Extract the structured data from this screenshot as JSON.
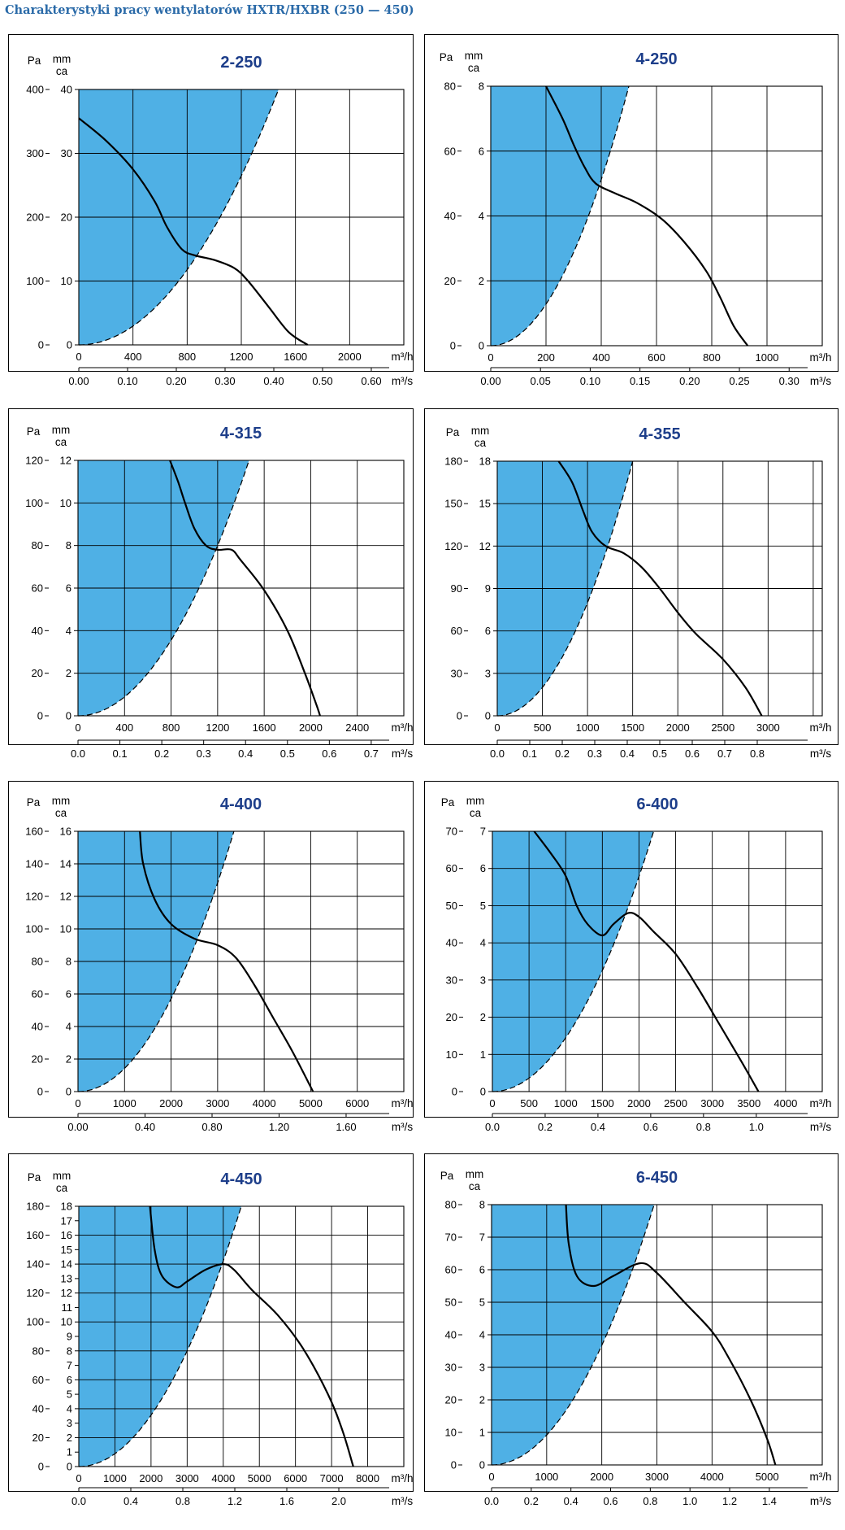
{
  "page": {
    "title": "Charakterystyki pracy wentylatorów HXTR/HXBR (250 — 450)"
  },
  "colors": {
    "fill": "#4fb0e5",
    "title": "#1d3e8a",
    "grid": "#000000",
    "curve": "#000000"
  },
  "chart_data": [
    {
      "type": "line",
      "title": "2-250",
      "ylabel_pa": "Pa",
      "ylabel_mm": "mm",
      "ylabel_mm2": "ca",
      "xlabel": "m³/h",
      "xlabel2": "m³/s",
      "xlim": [
        0,
        2400
      ],
      "ylim": [
        0,
        400
      ],
      "x_ticks": [
        "0",
        "400",
        "800",
        "1200",
        "1600",
        "2000"
      ],
      "pa_ticks": [
        "0",
        "100",
        "200",
        "300",
        "400"
      ],
      "mm_ticks": [
        "0",
        "10",
        "20",
        "30",
        "40"
      ],
      "x2_ticks": [
        "0.00",
        "0.10",
        "0.20",
        "0.30",
        "0.40",
        "0.50",
        "0.60"
      ],
      "x2_max": 0.6667,
      "x2_step": 0.1,
      "fill_boundary_x": 1475,
      "curve": [
        [
          0,
          355
        ],
        [
          200,
          320
        ],
        [
          400,
          275
        ],
        [
          560,
          225
        ],
        [
          650,
          185
        ],
        [
          760,
          150
        ],
        [
          860,
          140
        ],
        [
          1000,
          133
        ],
        [
          1150,
          120
        ],
        [
          1250,
          100
        ],
        [
          1400,
          60
        ],
        [
          1550,
          20
        ],
        [
          1690,
          0
        ]
      ]
    },
    {
      "type": "line",
      "title": "4-250",
      "ylabel_pa": "Pa",
      "ylabel_mm": "mm",
      "ylabel_mm2": "ca",
      "xlabel": "m³/h",
      "xlabel2": "m³/s",
      "xlim": [
        0,
        1200
      ],
      "ylim": [
        0,
        80
      ],
      "x_ticks": [
        "0",
        "200",
        "400",
        "600",
        "800",
        "1000"
      ],
      "pa_ticks": [
        "0",
        "20",
        "40",
        "60",
        "80"
      ],
      "mm_ticks": [
        "0",
        "2",
        "4",
        "6",
        "8"
      ],
      "x2_ticks": [
        "0.00",
        "0.05",
        "0.10",
        "0.15",
        "0.20",
        "0.25",
        "0.30"
      ],
      "x2_max": 0.3333,
      "x2_step": 0.05,
      "fill_boundary_x": 500,
      "curve": [
        [
          200,
          80
        ],
        [
          260,
          70
        ],
        [
          300,
          62
        ],
        [
          340,
          55
        ],
        [
          380,
          50
        ],
        [
          450,
          47
        ],
        [
          530,
          44
        ],
        [
          620,
          39
        ],
        [
          700,
          32
        ],
        [
          780,
          23
        ],
        [
          830,
          15
        ],
        [
          880,
          6
        ],
        [
          930,
          0
        ]
      ]
    },
    {
      "type": "line",
      "title": "4-315",
      "ylabel_pa": "Pa",
      "ylabel_mm": "mm",
      "ylabel_mm2": "ca",
      "xlabel": "m³/h",
      "xlabel2": "m³/s",
      "xlim": [
        0,
        2800
      ],
      "ylim": [
        0,
        120
      ],
      "x_ticks": [
        "0",
        "400",
        "800",
        "1200",
        "1600",
        "2000",
        "2400"
      ],
      "pa_ticks": [
        "0",
        "20",
        "40",
        "60",
        "80",
        "100",
        "120"
      ],
      "mm_ticks": [
        "0",
        "2",
        "4",
        "6",
        "8",
        "10",
        "12"
      ],
      "x2_ticks": [
        "0.0",
        "0.1",
        "0.2",
        "0.3",
        "0.4",
        "0.5",
        "0.6",
        "0.7"
      ],
      "x2_max": 0.7778,
      "x2_step": 0.1,
      "fill_boundary_x": 1470,
      "curve": [
        [
          790,
          120
        ],
        [
          860,
          110
        ],
        [
          920,
          100
        ],
        [
          1000,
          88
        ],
        [
          1100,
          80
        ],
        [
          1200,
          78
        ],
        [
          1320,
          78
        ],
        [
          1400,
          73
        ],
        [
          1600,
          59
        ],
        [
          1800,
          40
        ],
        [
          1950,
          20
        ],
        [
          2050,
          5
        ],
        [
          2080,
          0
        ]
      ]
    },
    {
      "type": "line",
      "title": "4-355",
      "ylabel_pa": "Pa",
      "ylabel_mm": "mm",
      "ylabel_mm2": "ca",
      "xlabel": "m³/h",
      "xlabel2": "m³/s",
      "xlim": [
        0,
        3600
      ],
      "ylim": [
        0,
        180
      ],
      "x_ticks": [
        "0",
        "500",
        "1000",
        "1500",
        "2000",
        "2500",
        "3000"
      ],
      "pa_ticks": [
        "0",
        "30",
        "60",
        "90",
        "120",
        "150",
        "180"
      ],
      "mm_ticks": [
        "0",
        "3",
        "6",
        "9",
        "12",
        "15",
        "18"
      ],
      "x2_ticks": [
        "0.0",
        "0.1",
        "0.2",
        "0.3",
        "0.4",
        "0.5",
        "0.6",
        "0.7",
        "0.8"
      ],
      "x2_max": 1.0,
      "x2_step": 0.1,
      "fill_boundary_x": 1500,
      "curve": [
        [
          680,
          180
        ],
        [
          830,
          165
        ],
        [
          950,
          145
        ],
        [
          1050,
          130
        ],
        [
          1200,
          120
        ],
        [
          1400,
          115
        ],
        [
          1600,
          105
        ],
        [
          1800,
          90
        ],
        [
          2000,
          73
        ],
        [
          2200,
          58
        ],
        [
          2500,
          40
        ],
        [
          2750,
          20
        ],
        [
          2930,
          0
        ]
      ]
    },
    {
      "type": "line",
      "title": "4-400",
      "ylabel_pa": "Pa",
      "ylabel_mm": "mm",
      "ylabel_mm2": "ca",
      "xlabel": "m³/h",
      "xlabel2": "m³/s",
      "xlim": [
        0,
        7000
      ],
      "ylim": [
        0,
        160
      ],
      "x_ticks": [
        "0",
        "1000",
        "2000",
        "3000",
        "4000",
        "5000",
        "6000"
      ],
      "pa_ticks": [
        "0",
        "20",
        "40",
        "60",
        "80",
        "100",
        "120",
        "140",
        "160"
      ],
      "mm_ticks": [
        "0",
        "2",
        "4",
        "6",
        "8",
        "10",
        "12",
        "14",
        "16"
      ],
      "x2_ticks": [
        "0.00",
        "0.40",
        "0.80",
        "1.20",
        "1.60"
      ],
      "x2_max": 1.9444,
      "x2_step": 0.4,
      "fill_boundary_x": 3350,
      "curve": [
        [
          1330,
          160
        ],
        [
          1400,
          140
        ],
        [
          1650,
          118
        ],
        [
          2000,
          103
        ],
        [
          2500,
          94
        ],
        [
          3000,
          90
        ],
        [
          3400,
          82
        ],
        [
          3800,
          65
        ],
        [
          4200,
          45
        ],
        [
          4600,
          25
        ],
        [
          5050,
          0
        ]
      ]
    },
    {
      "type": "line",
      "title": "6-400",
      "ylabel_pa": "Pa",
      "ylabel_mm": "mm",
      "ylabel_mm2": "ca",
      "xlabel": "m³/h",
      "xlabel2": "m³/s",
      "xlim": [
        0,
        4500
      ],
      "ylim": [
        0,
        70
      ],
      "x_ticks": [
        "0",
        "500",
        "1000",
        "1500",
        "2000",
        "2500",
        "3000",
        "3500",
        "4000"
      ],
      "pa_ticks": [
        "0",
        "10",
        "20",
        "30",
        "40",
        "50",
        "60",
        "70"
      ],
      "mm_ticks": [
        "0",
        "1",
        "2",
        "3",
        "4",
        "5",
        "6",
        "7"
      ],
      "x2_ticks": [
        "0.0",
        "0.2",
        "0.4",
        "0.6",
        "0.8",
        "1.0"
      ],
      "x2_max": 1.25,
      "x2_step": 0.2,
      "fill_boundary_x": 2200,
      "curve": [
        [
          570,
          70
        ],
        [
          800,
          64
        ],
        [
          1000,
          58
        ],
        [
          1150,
          50
        ],
        [
          1300,
          45
        ],
        [
          1500,
          42
        ],
        [
          1650,
          45
        ],
        [
          1850,
          48
        ],
        [
          2000,
          47
        ],
        [
          2200,
          43
        ],
        [
          2500,
          37
        ],
        [
          2800,
          28
        ],
        [
          3100,
          18
        ],
        [
          3400,
          8
        ],
        [
          3630,
          0
        ]
      ]
    },
    {
      "type": "line",
      "title": "4-450",
      "ylabel_pa": "Pa",
      "ylabel_mm": "mm",
      "ylabel_mm2": "ca",
      "xlabel": "m³/h",
      "xlabel2": "m³/s",
      "xlim": [
        0,
        9000
      ],
      "ylim": [
        0,
        180
      ],
      "x_ticks": [
        "0",
        "1000",
        "2000",
        "3000",
        "4000",
        "5000",
        "6000",
        "7000",
        "8000"
      ],
      "pa_ticks": [
        "0",
        "20",
        "40",
        "60",
        "80",
        "100",
        "120",
        "140",
        "160",
        "180"
      ],
      "mm_ticks": [
        "0",
        "1",
        "2",
        "3",
        "4",
        "5",
        "6",
        "7",
        "8",
        "9",
        "10",
        "11",
        "12",
        "13",
        "14",
        "15",
        "16",
        "17",
        "18"
      ],
      "x2_ticks": [
        "0.0",
        "0.4",
        "0.8",
        "1.2",
        "1.6",
        "2.0"
      ],
      "x2_max": 2.5,
      "x2_step": 0.4,
      "fill_boundary_x": 4500,
      "curve": [
        [
          1970,
          180
        ],
        [
          2100,
          150
        ],
        [
          2300,
          132
        ],
        [
          2700,
          124
        ],
        [
          3000,
          128
        ],
        [
          3500,
          136
        ],
        [
          4000,
          140
        ],
        [
          4300,
          136
        ],
        [
          4800,
          122
        ],
        [
          5500,
          105
        ],
        [
          6200,
          82
        ],
        [
          6900,
          50
        ],
        [
          7300,
          25
        ],
        [
          7600,
          0
        ]
      ]
    },
    {
      "type": "line",
      "title": "6-450",
      "ylabel_pa": "Pa",
      "ylabel_mm": "mm",
      "ylabel_mm2": "ca",
      "xlabel": "m³/h",
      "xlabel2": "m³/s",
      "xlim": [
        0,
        6000
      ],
      "ylim": [
        0,
        80
      ],
      "x_ticks": [
        "0",
        "1000",
        "2000",
        "3000",
        "4000",
        "5000"
      ],
      "pa_ticks": [
        "0",
        "10",
        "20",
        "30",
        "40",
        "50",
        "60",
        "70",
        "80"
      ],
      "mm_ticks": [
        "0",
        "1",
        "2",
        "3",
        "4",
        "5",
        "6",
        "7",
        "8"
      ],
      "x2_ticks": [
        "0.0",
        "0.2",
        "0.4",
        "0.6",
        "0.8",
        "1.0",
        "1.2",
        "1.4"
      ],
      "x2_max": 1.6667,
      "x2_step": 0.2,
      "fill_boundary_x": 2950,
      "curve": [
        [
          1350,
          80
        ],
        [
          1400,
          68
        ],
        [
          1550,
          58
        ],
        [
          1850,
          55
        ],
        [
          2200,
          58
        ],
        [
          2700,
          62
        ],
        [
          3000,
          59
        ],
        [
          3500,
          50
        ],
        [
          4000,
          41
        ],
        [
          4300,
          33
        ],
        [
          4700,
          20
        ],
        [
          5000,
          8
        ],
        [
          5150,
          0
        ]
      ]
    }
  ]
}
